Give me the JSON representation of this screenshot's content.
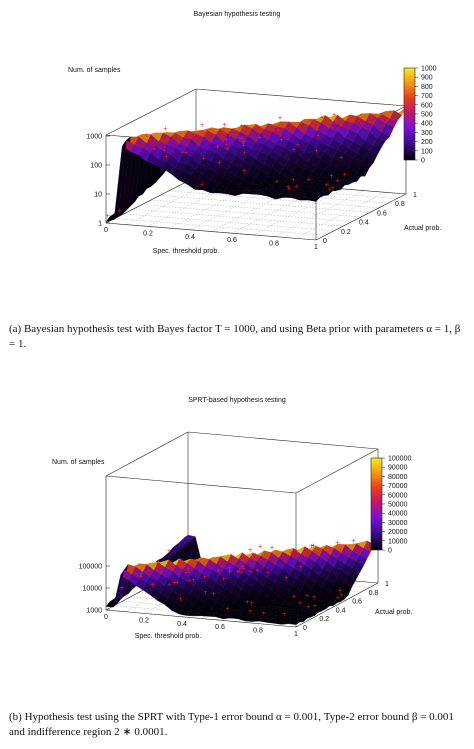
{
  "chart_data": [
    {
      "type": "surface3d",
      "title": "Bayesian hypothesis testing",
      "xlabel": "Spec. threshold prob.",
      "ylabel": "Actual prob.",
      "zlabel": "Num. of samples",
      "x_ticks": [
        "0",
        "0.2",
        "0.4",
        "0.6",
        "0.8",
        "1"
      ],
      "y_ticks": [
        "0",
        "0.2",
        "0.4",
        "0.6",
        "0.8",
        "1"
      ],
      "z_ticks": [
        "1",
        "10",
        "100",
        "1000"
      ],
      "z_scale": "log",
      "zlim": [
        1,
        1000
      ],
      "colorbar_ticks": [
        "1000",
        "900",
        "800",
        "700",
        "600",
        "500",
        "400",
        "300",
        "200",
        "100",
        "0"
      ],
      "colorbar_range": [
        0,
        1000
      ],
      "grid": "base plane",
      "points_color": "#e8201c"
    },
    {
      "type": "surface3d",
      "title": "SPRT-based hypothesis testing",
      "xlabel": "Spec. threshold prob.",
      "ylabel": "Actual prob.",
      "zlabel": "Num. of samples",
      "x_ticks": [
        "0",
        "0.2",
        "0.4",
        "0.6",
        "0.8",
        "1"
      ],
      "y_ticks": [
        "0",
        "0.2",
        "0.4",
        "0.6",
        "0.8",
        "1"
      ],
      "z_ticks": [
        "1000",
        "10000",
        "100000"
      ],
      "z_scale": "log",
      "zlim": [
        1000,
        100000
      ],
      "colorbar_ticks": [
        "100000",
        "90000",
        "80000",
        "70000",
        "60000",
        "50000",
        "40000",
        "30000",
        "20000",
        "10000",
        "0"
      ],
      "colorbar_range": [
        0,
        100000
      ],
      "grid": "base plane",
      "points_color": "#e8201c"
    }
  ],
  "captions": {
    "a": "(a) Bayesian hypothesis test with Bayes factor T = 1000, and using Beta prior with parameters α = 1, β = 1.",
    "b": "(b) Hypothesis test using the SPRT with Type-1 error bound α = 0.001, Type-2 error bound β = 0.001 and indifference region 2 ∗ 0.0001."
  },
  "colors": {
    "palette": [
      "#000000",
      "#3b0a8c",
      "#7a10d8",
      "#c0186a",
      "#e8401e",
      "#f59a10",
      "#fbe62a"
    ]
  }
}
